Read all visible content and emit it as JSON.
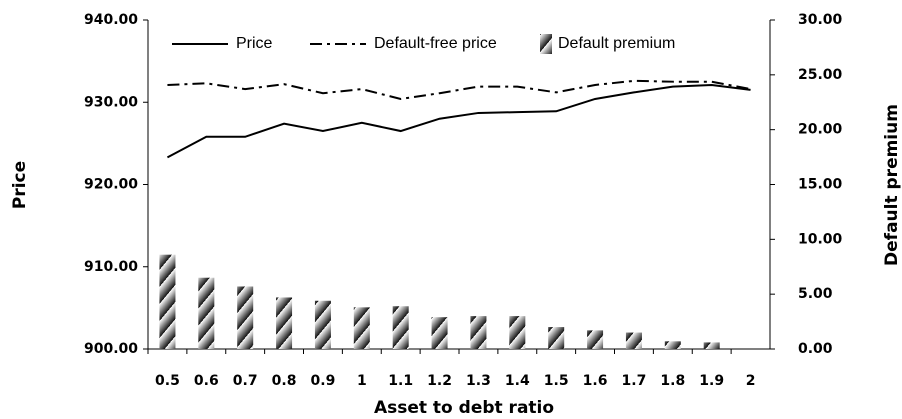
{
  "chart_data": {
    "type": "combo",
    "categories": [
      "0.5",
      "0.6",
      "0.7",
      "0.8",
      "0.9",
      "1",
      "1.1",
      "1.2",
      "1.3",
      "1.4",
      "1.5",
      "1.6",
      "1.7",
      "1.8",
      "1.9",
      "2"
    ],
    "x_label": "Asset to debt ratio",
    "y_label": "Price",
    "y2_label": "Default premium",
    "series": [
      {
        "name": "Price",
        "type": "line",
        "style": "solid",
        "color": "#000000",
        "values": [
          923.3,
          925.8,
          925.8,
          927.4,
          926.5,
          927.5,
          926.5,
          928.0,
          928.7,
          928.8,
          928.9,
          930.4,
          931.2,
          931.9,
          932.1,
          931.5
        ]
      },
      {
        "name": "Default-free price",
        "type": "line",
        "style": "dash-dot",
        "color": "#000000",
        "values": [
          932.1,
          932.3,
          931.6,
          932.2,
          931.1,
          931.6,
          930.4,
          931.1,
          931.9,
          931.9,
          931.2,
          932.1,
          932.6,
          932.5,
          932.5,
          931.6
        ]
      },
      {
        "name": "Default premium",
        "type": "bar",
        "axis": "y2",
        "color": "#000000",
        "values": [
          8.6,
          6.5,
          5.7,
          4.7,
          4.4,
          3.8,
          3.9,
          2.9,
          3.0,
          3.0,
          2.0,
          1.7,
          1.5,
          0.7,
          0.6,
          0
        ]
      }
    ],
    "ylim": [
      900,
      940
    ],
    "yticks": [
      {
        "value": 900,
        "label": "900.00"
      },
      {
        "value": 910,
        "label": "910.00"
      },
      {
        "value": 920,
        "label": "920.00"
      },
      {
        "value": 930,
        "label": "930.00"
      },
      {
        "value": 940,
        "label": "940.00"
      }
    ],
    "y2lim": [
      0,
      30
    ],
    "y2ticks": [
      {
        "value": 0,
        "label": "0.00"
      },
      {
        "value": 5,
        "label": "5.00"
      },
      {
        "value": 10,
        "label": "10.00"
      },
      {
        "value": 15,
        "label": "15.00"
      },
      {
        "value": 20,
        "label": "20.00"
      },
      {
        "value": 25,
        "label": "25.00"
      },
      {
        "value": 30,
        "label": "30.00"
      }
    ],
    "grid": false
  }
}
